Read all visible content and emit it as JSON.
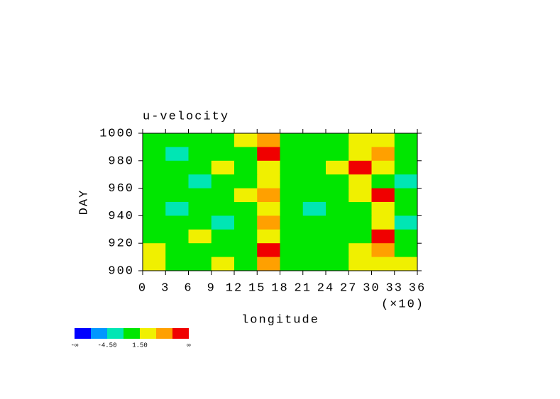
{
  "chart_data": {
    "type": "heatmap",
    "title": "u-velocity",
    "x_label": "longitude",
    "x_multiplier": "(×10)",
    "y_label": "DAY",
    "xlim": [
      0,
      36
    ],
    "xticks": [
      0,
      3,
      6,
      9,
      12,
      15,
      18,
      21,
      24,
      27,
      30,
      33,
      36
    ],
    "ylim": [
      900,
      1000
    ],
    "yticks": [
      900,
      920,
      940,
      960,
      980,
      1000
    ],
    "x": [
      1.5,
      4.5,
      7.5,
      10.5,
      13.5,
      16.5,
      19.5,
      22.5,
      25.5,
      28.5,
      31.5,
      34.5
    ],
    "y": [
      995,
      985,
      975,
      965,
      955,
      945,
      935,
      925,
      915,
      905
    ],
    "z": [
      [
        0,
        0,
        0,
        0,
        2,
        5,
        0,
        0,
        0,
        3,
        2,
        0
      ],
      [
        0,
        -2,
        0,
        0,
        0,
        8,
        0,
        0,
        0,
        3,
        5,
        0
      ],
      [
        0,
        0,
        0,
        2,
        0,
        3,
        0,
        0,
        3,
        8,
        2,
        0
      ],
      [
        0,
        0,
        -2,
        0,
        0,
        3,
        0,
        0,
        0,
        2,
        0,
        -2
      ],
      [
        0,
        0,
        0,
        0,
        2,
        5,
        0,
        0,
        0,
        3,
        8,
        0
      ],
      [
        0,
        -2,
        0,
        0,
        0,
        3,
        0,
        -2,
        0,
        0,
        3,
        0
      ],
      [
        0,
        0,
        0,
        -3,
        0,
        5,
        0,
        0,
        0,
        0,
        3,
        -2
      ],
      [
        0,
        0,
        2,
        0,
        0,
        3,
        0,
        0,
        0,
        0,
        8,
        0
      ],
      [
        3,
        0,
        0,
        0,
        0,
        8,
        0,
        0,
        0,
        2,
        5,
        0
      ],
      [
        2,
        0,
        0,
        2,
        0,
        6,
        0,
        0,
        0,
        3,
        2,
        3
      ]
    ],
    "levels": [
      -7.5,
      -4.5,
      -1.5,
      1.5,
      4.5,
      7.5
    ],
    "colors": [
      "#0000ff",
      "#0096ff",
      "#00e6b4",
      "#00e600",
      "#f0f000",
      "#ffa000",
      "#f00000"
    ],
    "colorbar_ticks": [
      {
        "value": -4.5,
        "label": "-4.50"
      },
      {
        "value": 1.5,
        "label": "1.50"
      }
    ],
    "colorbar_end_labels": [
      "-∞",
      "∞"
    ]
  }
}
